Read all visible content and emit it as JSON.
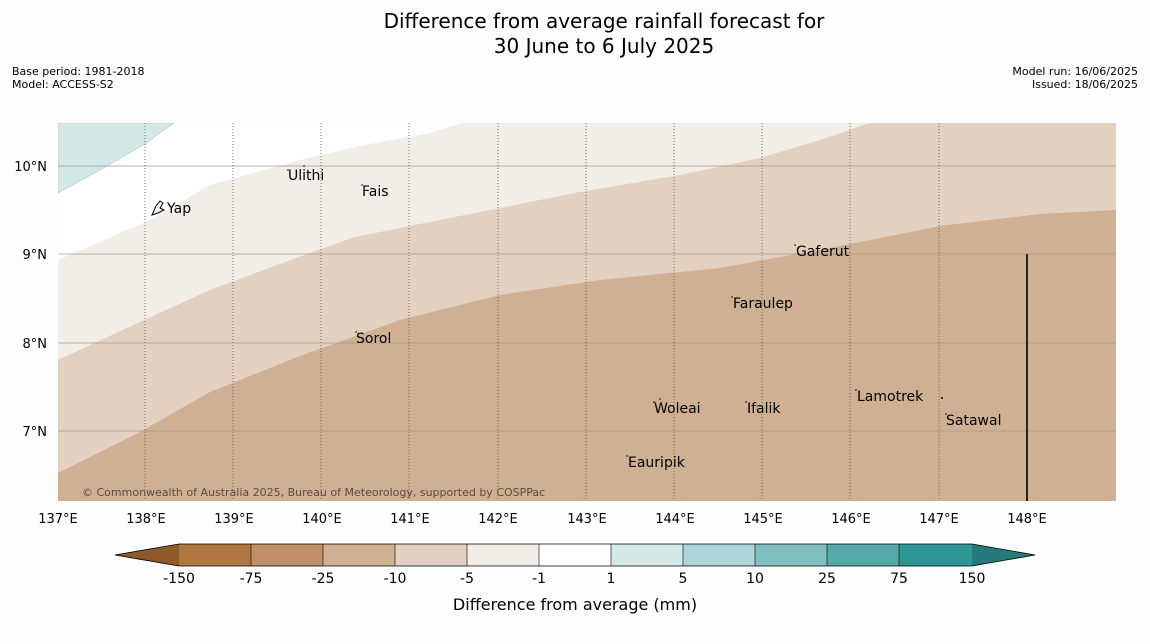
{
  "title_line1": "Difference from average rainfall forecast for",
  "title_line2": "30 June to 6 July 2025",
  "meta_left": [
    "Base period: 1981-2018",
    "Model: ACCESS-S2"
  ],
  "meta_right": [
    "Model run: 16/06/2025",
    "Issued: 18/06/2025"
  ],
  "copyright": "© Commonwealth of Australia 2025, Bureau of Meteorology, supported by COSPPac",
  "lat_labels": [
    "10°N",
    "9°N",
    "8°N",
    "7°N"
  ],
  "lon_labels": [
    "137°E",
    "138°E",
    "139°E",
    "140°E",
    "141°E",
    "142°E",
    "143°E",
    "144°E",
    "145°E",
    "146°E",
    "147°E",
    "148°E"
  ],
  "places": {
    "ulithi": "Ulithi",
    "fais": "Fais",
    "yap": "Yap",
    "gaferut": "Gaferut",
    "faraulep": "Faraulep",
    "sorol": "Sorol",
    "woleai": "Woleai",
    "ifalik": "Ifalik",
    "lamotrek": "Lamotrek",
    "satawal": "Satawal",
    "eauripik": "Eauripik"
  },
  "colorbar": {
    "title": "Difference from average (mm)",
    "ticks": [
      "-150",
      "-75",
      "-25",
      "-10",
      "-5",
      "-1",
      "1",
      "5",
      "10",
      "25",
      "75",
      "150"
    ],
    "colors": {
      "under": "#8c5a2b",
      "c1": "#b07840",
      "c2": "#c09068",
      "c3": "#d0b092",
      "c4": "#e2d0c0",
      "c5": "#f3ede8",
      "c6": "#ffffff",
      "c7": "#d4e8e8",
      "c8": "#acd6d7",
      "c9": "#80c0bf",
      "c10": "#56a9aa",
      "c11": "#2e9795",
      "over": "#257b7a"
    }
  }
}
